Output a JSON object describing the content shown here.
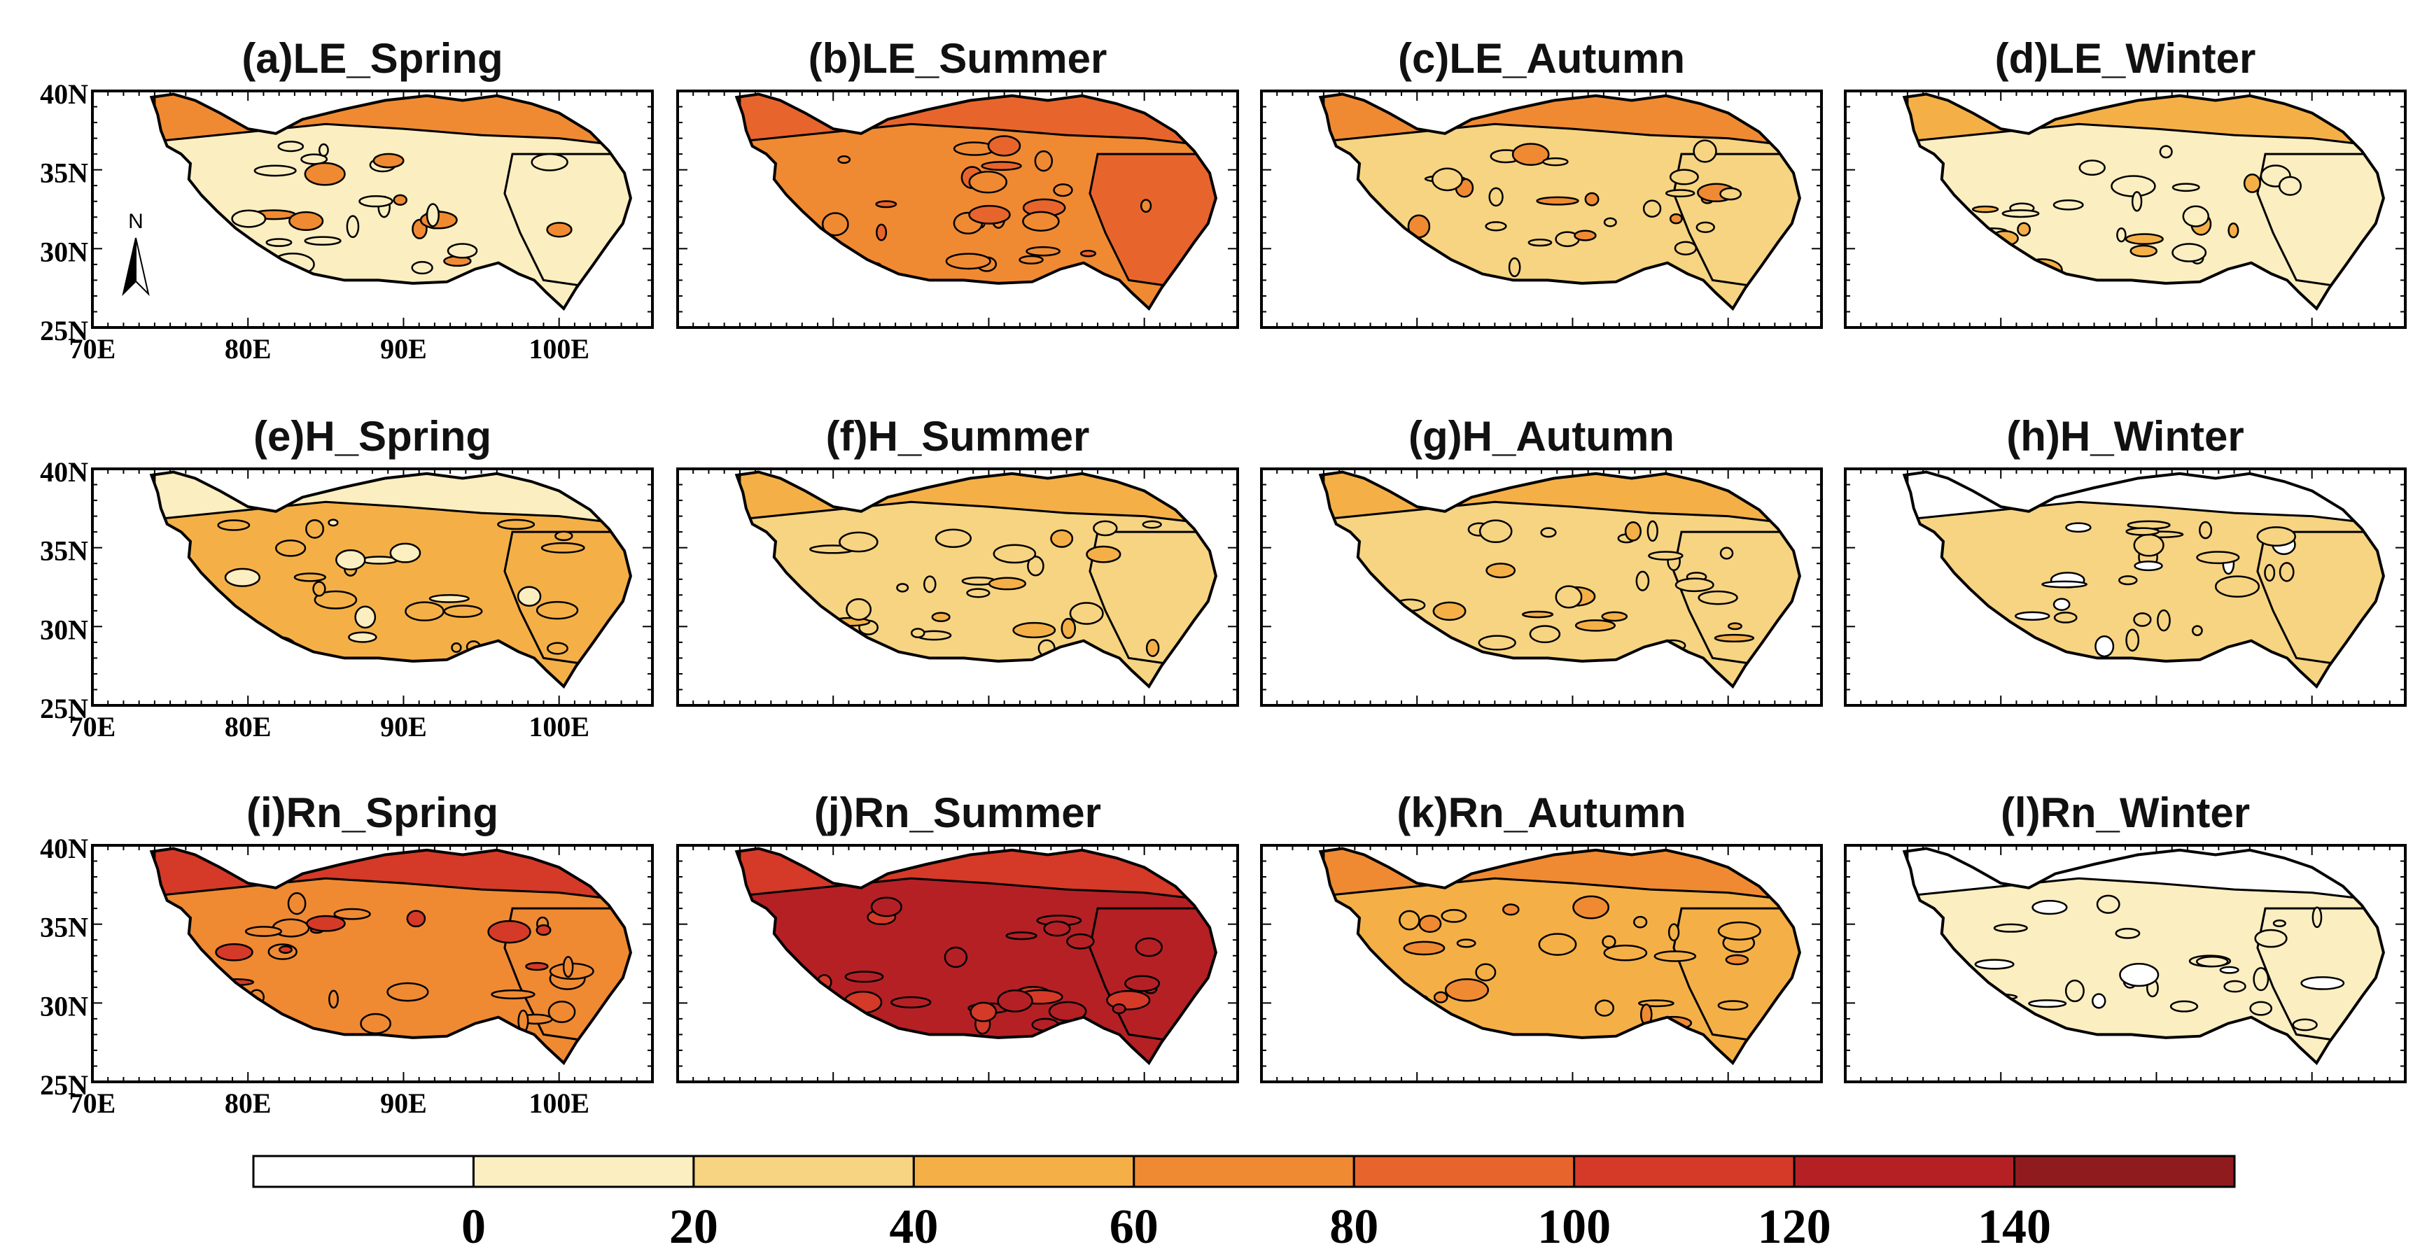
{
  "figure": {
    "colors": {
      "levels": [
        "#ffffff",
        "#fbeec0",
        "#f6d482",
        "#f4b047",
        "#ef8a33",
        "#e7652c",
        "#d43a27",
        "#b52025",
        "#8f1b1f"
      ],
      "edge": "#000000"
    },
    "axis_labels": {
      "lat": [
        "40N",
        "35N",
        "30N",
        "25N"
      ],
      "lon": [
        "70E",
        "80E",
        "90E",
        "100E"
      ]
    },
    "north_arrow": {
      "label": "N"
    },
    "panels": [
      {
        "title": "(a)LE_Spring",
        "category": "LE",
        "season": "Spring",
        "dominant_level": 1,
        "accent_level": 4,
        "axes_labels": true,
        "north_arrow": true
      },
      {
        "title": "(b)LE_Summer",
        "category": "LE",
        "season": "Summer",
        "dominant_level": 4,
        "accent_level": 5,
        "axes_labels": false
      },
      {
        "title": "(c)LE_Autumn",
        "category": "LE",
        "season": "Autumn",
        "dominant_level": 2,
        "accent_level": 4,
        "axes_labels": false
      },
      {
        "title": "(d)LE_Winter",
        "category": "LE",
        "season": "Winter",
        "dominant_level": 1,
        "accent_level": 3,
        "axes_labels": false
      },
      {
        "title": "(e)H_Spring",
        "category": "H",
        "season": "Spring",
        "dominant_level": 3,
        "accent_level": 1,
        "axes_labels": true
      },
      {
        "title": "(f)H_Summer",
        "category": "H",
        "season": "Summer",
        "dominant_level": 2,
        "accent_level": 3,
        "axes_labels": false
      },
      {
        "title": "(g)H_Autumn",
        "category": "H",
        "season": "Autumn",
        "dominant_level": 2,
        "accent_level": 3,
        "axes_labels": false
      },
      {
        "title": "(h)H_Winter",
        "category": "H",
        "season": "Winter",
        "dominant_level": 2,
        "accent_level": 0,
        "axes_labels": false
      },
      {
        "title": "(i)Rn_Spring",
        "category": "Rn",
        "season": "Spring",
        "dominant_level": 4,
        "accent_level": 6,
        "axes_labels": true
      },
      {
        "title": "(j)Rn_Summer",
        "category": "Rn",
        "season": "Summer",
        "dominant_level": 7,
        "accent_level": 6,
        "axes_labels": false
      },
      {
        "title": "(k)Rn_Autumn",
        "category": "Rn",
        "season": "Autumn",
        "dominant_level": 3,
        "accent_level": 4,
        "axes_labels": false
      },
      {
        "title": "(l)Rn_Winter",
        "category": "Rn",
        "season": "Winter",
        "dominant_level": 1,
        "accent_level": 0,
        "axes_labels": false
      }
    ],
    "colorbar": {
      "ticks": [
        "0",
        "20",
        "40",
        "60",
        "80",
        "100",
        "120",
        "140"
      ],
      "boundaries": [
        0,
        20,
        40,
        60,
        80,
        100,
        120,
        140
      ]
    }
  }
}
